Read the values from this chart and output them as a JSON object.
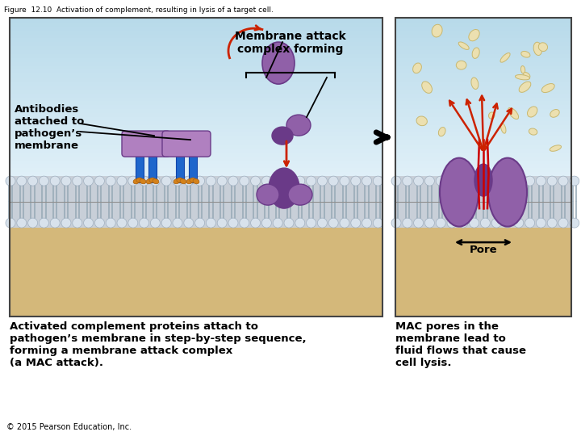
{
  "figure_title": "Figure  12.10  Activation of complement, resulting in lysis of a target cell.",
  "copyright": "© 2015 Pearson Education, Inc.",
  "panel1_label": "Antibodies\nattached to\npathogen’s\nmembrane",
  "panel1_header": "Membrane attack\ncomplex forming",
  "panel1_caption": "Activated complement proteins attach to\npathogen’s membrane in step-by-step sequence,\nforming a membrane attack complex\n(a MAC attack).",
  "panel2_pore_label": "Pore",
  "panel2_caption": "MAC pores in the\nmembrane lead to\nfluid flows that cause\ncell lysis.",
  "bg_sky_top": "#b8daea",
  "bg_sky_bot": "#deeef5",
  "protein_purple": "#9060a8",
  "protein_purple_dark": "#6a3a88",
  "protein_purple_light": "#b080c0",
  "antibody_blue": "#1e66cc",
  "antibody_blue_dark": "#1044aa",
  "antibody_orange": "#d4821a",
  "arrow_red": "#cc2200",
  "membrane_ball_color": "#d0d8e0",
  "membrane_ball_outline": "#a0b0c0",
  "membrane_stick_color": "#b0b8c4",
  "panel_border": "#444444",
  "fragment_color": "#ece0b0",
  "fragment_outline": "#c8b870",
  "bg_membrane_bottom": "#d4b87a",
  "membrane_line_color": "#909090"
}
